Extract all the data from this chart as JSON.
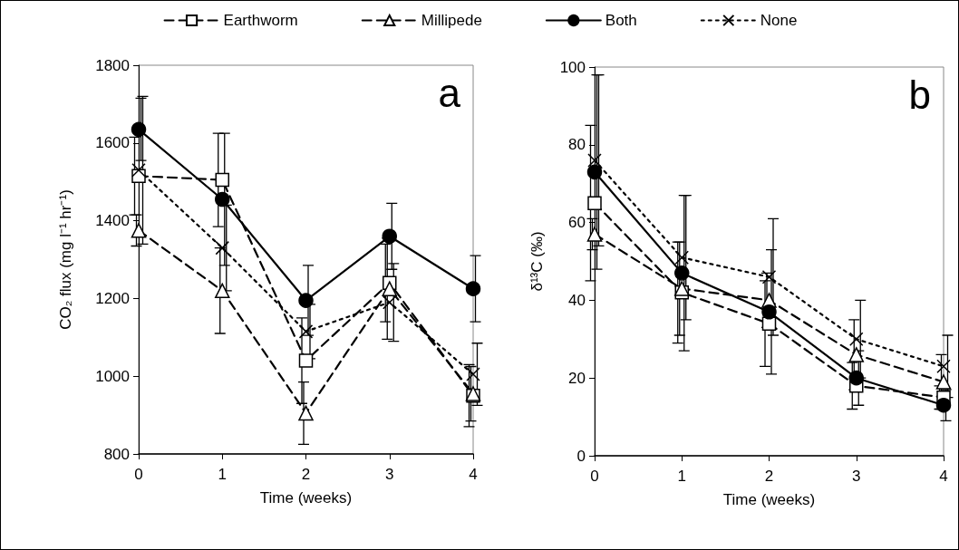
{
  "chart_data": [
    {
      "type": "line",
      "xlabel": "Time (weeks)",
      "ylabel": "CO₂ flux (mg l⁻¹ hr⁻¹)",
      "x": [
        0,
        1,
        2,
        3,
        4
      ],
      "xlim": [
        0,
        4
      ],
      "xticks": [
        0,
        1,
        2,
        3,
        4
      ],
      "ylim": [
        800,
        1800
      ],
      "yticks": [
        800,
        1000,
        1200,
        1400,
        1600,
        1800
      ],
      "grid": false,
      "legend": "top",
      "annotations": [
        "a"
      ],
      "series": [
        {
          "name": "Earthworm",
          "color": "#000000",
          "marker": "square",
          "line_style": "dashed",
          "values": [
            1515,
            1505,
            1040,
            1240,
            950
          ],
          "errors": [
            100,
            120,
            110,
            100,
            80
          ]
        },
        {
          "name": "Millipede",
          "color": "#000000",
          "marker": "triangle",
          "line_style": "dashed",
          "values": [
            1375,
            1220,
            905,
            1225,
            955
          ],
          "errors": [
            40,
            110,
            80,
            130,
            70
          ]
        },
        {
          "name": "Both",
          "color": "#000000",
          "marker": "circle",
          "line_style": "solid",
          "values": [
            1635,
            1455,
            1195,
            1360,
            1225
          ],
          "errors": [
            80,
            170,
            90,
            85,
            85
          ]
        },
        {
          "name": "None",
          "color": "#000000",
          "marker": "cross",
          "line_style": "dotted",
          "values": [
            1530,
            1330,
            1115,
            1190,
            1005
          ],
          "errors": [
            190,
            110,
            70,
            100,
            80
          ]
        }
      ]
    },
    {
      "type": "line",
      "xlabel": "Time (weeks)",
      "ylabel": "δ¹³C (‰)",
      "x": [
        0,
        1,
        2,
        3,
        4
      ],
      "xlim": [
        0,
        4
      ],
      "xticks": [
        0,
        1,
        2,
        3,
        4
      ],
      "ylim": [
        0,
        100
      ],
      "yticks": [
        0,
        20,
        40,
        60,
        80,
        100
      ],
      "grid": false,
      "annotations": [
        "b"
      ],
      "series": [
        {
          "color": "#000000",
          "marker": "square",
          "line_style": "dashed",
          "values": [
            65,
            42,
            34,
            18,
            15
          ],
          "errors": [
            20,
            13,
            11,
            6,
            3
          ]
        },
        {
          "color": "#000000",
          "marker": "triangle",
          "line_style": "dashed",
          "values": [
            57,
            43,
            40,
            26,
            19
          ],
          "errors": [
            4,
            12,
            7,
            9,
            7
          ]
        },
        {
          "color": "#000000",
          "marker": "circle",
          "line_style": "solid",
          "values": [
            73,
            47,
            37,
            20,
            13
          ],
          "errors": [
            25,
            20,
            16,
            7,
            4
          ]
        },
        {
          "color": "#000000",
          "marker": "cross",
          "line_style": "dotted",
          "values": [
            76,
            51,
            46,
            30,
            23
          ],
          "errors": [
            22,
            16,
            15,
            10,
            8
          ]
        }
      ]
    }
  ]
}
